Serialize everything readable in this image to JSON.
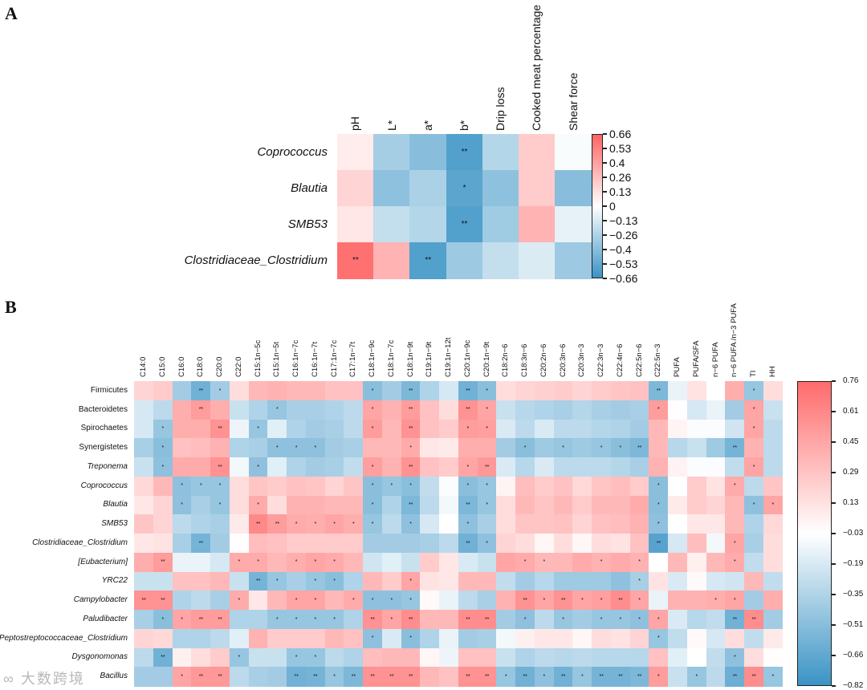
{
  "panels": {
    "a_label": "A",
    "b_label": "B"
  },
  "watermark": "大数跨境",
  "chart_data": [
    {
      "type": "heatmap",
      "title": "A",
      "rows": [
        "Coprococcus",
        "Blautia",
        "SMB53",
        "Clostridiaceae_Clostridium"
      ],
      "row_italic": [
        true,
        true,
        true,
        true
      ],
      "columns": [
        "pH",
        "L*",
        "a*",
        "b*",
        "Drip loss",
        "Cooked meat percentage",
        "Shear force"
      ],
      "values": [
        [
          0.08,
          -0.3,
          -0.4,
          -0.58,
          -0.25,
          0.22,
          -0.02
        ],
        [
          0.18,
          -0.38,
          -0.28,
          -0.55,
          -0.38,
          0.22,
          -0.4
        ],
        [
          0.1,
          -0.2,
          -0.25,
          -0.58,
          -0.32,
          0.32,
          -0.08
        ],
        [
          0.6,
          0.32,
          -0.58,
          -0.33,
          -0.2,
          -0.12,
          -0.33
        ]
      ],
      "significance": [
        "0002000",
        "0001000",
        "0002000",
        "2020000"
      ],
      "significance_marks": {
        "1": "*",
        "2": "**"
      },
      "colorbar": {
        "min": -0.66,
        "max": 0.66,
        "ticks": [
          "0.66",
          "0.53",
          "0.4",
          "0.26",
          "0.13",
          "0",
          "−0.13",
          "−0.26",
          "−0.4",
          "−0.53",
          "−0.66"
        ]
      },
      "colors": {
        "high": "#ff6363",
        "mid": "#ffffff",
        "low": "#3a93c5"
      }
    },
    {
      "type": "heatmap",
      "title": "B",
      "rows": [
        "Firmicutes",
        "Bacteroidetes",
        "Spirochaetes",
        "Synergistetes",
        "Treponema",
        "Coprococcus",
        "Blautia",
        "SMB53",
        "Clostridiaceae_Clostridium",
        "[Eubacterium]",
        "YRC22",
        "Campylobacter",
        "Paludibacter",
        "Peptostreptococcaceae_Clostridium",
        "Dysgonomonas",
        "Bacillus"
      ],
      "row_italic": [
        false,
        false,
        false,
        false,
        true,
        true,
        true,
        true,
        true,
        true,
        true,
        true,
        true,
        true,
        true,
        true
      ],
      "columns": [
        "C14:0",
        "C15:0",
        "C16:0",
        "C18:0",
        "C20:0",
        "C22:0",
        "C15:1n−5c",
        "C15:1n−5t",
        "C16:1n−7c",
        "C16:1n−7t",
        "C17:1n−7c",
        "C17:1n−7t",
        "C18:1n−9c",
        "C18:1n−7c",
        "C18:1n−9t",
        "C19:1n−9t",
        "C19:1n−12t",
        "C20:1n−9c",
        "C20:1n−9t",
        "C18:2n−6",
        "C18:3n−6",
        "C20:2n−6",
        "C20:3n−6",
        "C20:3n−3",
        "C22:3n−3",
        "C22:4n−6",
        "C22:5n−6",
        "C22:5n−3",
        "PUFA",
        "PUFA/SFA",
        "n−6 PUFA",
        "n−6 PUFA /n−3 PUFA",
        "TI",
        "HH"
      ],
      "values": [
        [
          0.2,
          0.25,
          -0.4,
          -0.6,
          -0.4,
          0.15,
          0.35,
          0.38,
          0.35,
          0.35,
          0.3,
          0.3,
          -0.5,
          -0.4,
          -0.55,
          -0.35,
          -0.2,
          -0.6,
          -0.5,
          0.15,
          0.2,
          0.22,
          0.25,
          0.2,
          0.25,
          0.28,
          0.3,
          -0.55,
          -0.12,
          0.12,
          -0.03,
          0.4,
          -0.45,
          0.15
        ],
        [
          -0.2,
          -0.3,
          0.4,
          0.5,
          0.4,
          -0.25,
          -0.35,
          -0.45,
          -0.38,
          -0.38,
          -0.35,
          -0.3,
          0.45,
          0.38,
          0.5,
          0.3,
          0.15,
          0.55,
          0.45,
          -0.25,
          -0.32,
          -0.35,
          -0.38,
          -0.33,
          -0.38,
          -0.4,
          -0.38,
          0.5,
          -0.02,
          -0.2,
          -0.12,
          -0.4,
          0.45,
          -0.25
        ],
        [
          -0.2,
          -0.45,
          0.4,
          0.4,
          0.55,
          -0.1,
          -0.45,
          -0.15,
          -0.35,
          -0.4,
          -0.38,
          -0.3,
          0.5,
          0.35,
          0.55,
          0.3,
          0.25,
          0.5,
          0.48,
          -0.18,
          -0.3,
          -0.18,
          -0.3,
          -0.3,
          -0.33,
          -0.35,
          -0.4,
          0.35,
          0.03,
          -0.05,
          -0.05,
          -0.22,
          0.45,
          -0.3
        ],
        [
          -0.38,
          -0.5,
          0.3,
          0.32,
          0.38,
          -0.35,
          -0.38,
          -0.48,
          -0.48,
          -0.48,
          -0.4,
          -0.38,
          0.35,
          0.35,
          0.42,
          0.1,
          0.08,
          0.4,
          0.4,
          -0.4,
          -0.5,
          -0.42,
          -0.45,
          -0.42,
          -0.45,
          -0.5,
          -0.55,
          0.35,
          -0.32,
          -0.25,
          -0.42,
          -0.58,
          0.38,
          -0.3
        ],
        [
          -0.25,
          -0.48,
          0.42,
          0.42,
          0.55,
          -0.08,
          -0.48,
          -0.15,
          -0.35,
          -0.4,
          -0.38,
          -0.28,
          0.48,
          0.38,
          0.55,
          0.3,
          0.25,
          0.45,
          0.52,
          -0.18,
          -0.32,
          -0.18,
          -0.3,
          -0.3,
          -0.3,
          -0.33,
          -0.38,
          0.38,
          0.04,
          -0.05,
          -0.05,
          -0.28,
          0.45,
          -0.3
        ],
        [
          0.18,
          0.35,
          -0.48,
          -0.45,
          -0.45,
          0.15,
          0.28,
          0.25,
          0.3,
          0.28,
          0.2,
          0.28,
          -0.5,
          -0.45,
          -0.5,
          -0.28,
          -0.05,
          -0.5,
          -0.45,
          0.03,
          0.32,
          0.25,
          0.3,
          0.18,
          0.28,
          0.32,
          0.25,
          -0.5,
          -0.03,
          0.25,
          0.12,
          0.42,
          -0.3,
          0.28
        ],
        [
          0.1,
          0.2,
          -0.48,
          -0.38,
          -0.45,
          0.15,
          0.42,
          0.15,
          0.38,
          0.38,
          0.35,
          0.35,
          -0.5,
          -0.35,
          -0.55,
          -0.3,
          -0.08,
          -0.55,
          -0.45,
          0.15,
          0.35,
          0.28,
          0.35,
          0.25,
          0.35,
          0.35,
          0.42,
          -0.5,
          0.08,
          0.25,
          0.2,
          0.35,
          -0.48,
          0.45
        ],
        [
          0.28,
          0.2,
          -0.3,
          -0.35,
          -0.38,
          0.08,
          0.6,
          0.5,
          0.42,
          0.4,
          0.45,
          0.4,
          -0.45,
          -0.3,
          -0.48,
          -0.2,
          -0.03,
          -0.48,
          -0.38,
          0.15,
          0.28,
          0.28,
          0.3,
          0.2,
          0.3,
          0.32,
          0.38,
          -0.48,
          -0.03,
          0.1,
          0.1,
          0.35,
          -0.35,
          0.18
        ],
        [
          0.1,
          0.12,
          -0.38,
          -0.58,
          -0.4,
          -0.02,
          0.32,
          0.3,
          0.25,
          0.25,
          0.25,
          0.25,
          -0.4,
          -0.4,
          -0.4,
          -0.38,
          -0.3,
          -0.6,
          -0.48,
          0.2,
          0.15,
          0.02,
          0.15,
          0.02,
          0.15,
          0.12,
          0.3,
          -0.7,
          -0.2,
          0.32,
          -0.08,
          0.45,
          -0.38,
          0.15
        ],
        [
          0.4,
          0.5,
          -0.12,
          -0.12,
          -0.2,
          0.42,
          0.42,
          0.35,
          0.4,
          0.45,
          0.42,
          0.35,
          -0.22,
          -0.15,
          -0.25,
          0.25,
          0.1,
          -0.18,
          -0.25,
          0.45,
          0.42,
          0.35,
          0.35,
          0.42,
          0.38,
          0.42,
          0.38,
          -0.03,
          0.35,
          0.05,
          0.35,
          0.42,
          -0.28,
          0.15
        ],
        [
          -0.25,
          -0.25,
          0.3,
          0.3,
          0.35,
          -0.25,
          -0.58,
          -0.45,
          -0.38,
          -0.45,
          -0.5,
          -0.35,
          0.35,
          0.25,
          0.45,
          0.12,
          0.1,
          0.35,
          0.35,
          -0.28,
          -0.4,
          -0.32,
          -0.42,
          -0.42,
          -0.42,
          -0.48,
          -0.38,
          0.12,
          -0.18,
          0.0,
          -0.2,
          -0.22,
          0.35,
          -0.28
        ],
        [
          0.55,
          0.55,
          -0.35,
          -0.3,
          -0.38,
          0.42,
          0.1,
          0.35,
          0.45,
          0.45,
          0.35,
          0.42,
          -0.48,
          -0.48,
          -0.45,
          0.0,
          -0.12,
          -0.3,
          -0.38,
          0.38,
          0.55,
          0.45,
          0.55,
          0.45,
          0.48,
          0.58,
          0.45,
          -0.12,
          0.38,
          0.38,
          0.4,
          0.45,
          -0.4,
          0.4
        ],
        [
          -0.38,
          -0.5,
          0.45,
          0.5,
          0.5,
          -0.35,
          -0.35,
          -0.45,
          -0.45,
          -0.45,
          -0.45,
          -0.35,
          0.55,
          0.45,
          0.58,
          0.35,
          0.35,
          0.58,
          0.58,
          -0.4,
          -0.48,
          -0.3,
          -0.45,
          -0.4,
          -0.45,
          -0.45,
          -0.48,
          0.45,
          -0.18,
          -0.32,
          -0.28,
          -0.6,
          0.58,
          -0.4
        ],
        [
          0.2,
          0.18,
          -0.35,
          -0.35,
          -0.3,
          -0.15,
          0.38,
          0.25,
          0.25,
          0.25,
          0.35,
          0.3,
          -0.48,
          -0.18,
          -0.5,
          -0.35,
          -0.12,
          -0.4,
          -0.38,
          -0.08,
          0.05,
          0.1,
          0.1,
          0.02,
          0.15,
          0.12,
          0.2,
          -0.45,
          -0.28,
          0.0,
          -0.2,
          0.15,
          -0.28,
          0.08
        ],
        [
          -0.3,
          -0.6,
          0.05,
          0.15,
          0.25,
          -0.45,
          -0.25,
          -0.25,
          -0.45,
          -0.45,
          -0.3,
          -0.35,
          0.32,
          0.35,
          0.35,
          0.02,
          -0.1,
          0.3,
          0.3,
          -0.25,
          -0.35,
          -0.3,
          -0.32,
          -0.3,
          -0.32,
          -0.32,
          -0.32,
          0.3,
          -0.15,
          -0.03,
          -0.28,
          -0.48,
          0.15,
          -0.02
        ],
        [
          -0.4,
          -0.4,
          0.45,
          0.52,
          0.52,
          -0.3,
          -0.38,
          -0.4,
          -0.6,
          -0.58,
          -0.45,
          -0.55,
          0.55,
          0.55,
          0.55,
          0.35,
          0.3,
          0.55,
          0.55,
          -0.45,
          -0.6,
          -0.48,
          -0.6,
          -0.45,
          -0.58,
          -0.58,
          -0.55,
          0.5,
          -0.25,
          -0.45,
          -0.3,
          -0.62,
          0.58,
          -0.45
        ]
      ],
      "significance": [
        "0002100000001020021000000002000010",
        "0002000100001020021000000001000010",
        "0100201000001020011000000000000010",
        "0100000111000010000010101120000200",
        "0100201000001020012000000000000010",
        "0011100000001110011000000001000100",
        "0010101000001020021000000001000011",
        "0000002211111010010000000001000000",
        "0002000000000000021000000002000100",
        "0200011011100000000011001010000100",
        "0000002101100010000000000010000000",
        "2200010011011110000021211210001100",
        "0112200111102120022010101111000220",
        "0000000000001010000000000001000000",
        "0200010011000000000000000000000100",
        "0012200022122220022121212221010221"
      ],
      "significance_marks": {
        "1": "*",
        "2": "**"
      },
      "colorbar": {
        "min": -0.82,
        "max": 0.76,
        "ticks": [
          "0.76",
          "0.61",
          "0.45",
          "0.29",
          "0.13",
          "−0.03",
          "−0.19",
          "−0.35",
          "−0.51",
          "−0.66",
          "−0.82"
        ]
      },
      "colors": {
        "high": "#ff6b6b",
        "mid": "#ffffff",
        "low": "#3a93c5"
      }
    }
  ]
}
